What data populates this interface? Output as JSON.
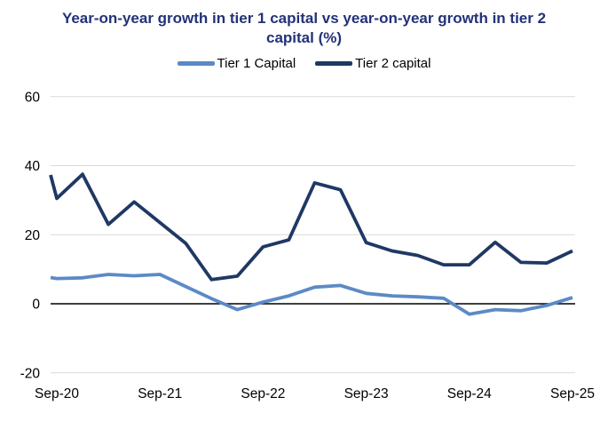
{
  "title": "Year-on-year growth in tier 1 capital vs year-on-year growth in tier 2 capital (%)",
  "colors": {
    "title": "#233278",
    "tier1": "#5B8AC6",
    "tier2": "#1F3864",
    "gridline": "#D9D9D9",
    "zero_line": "#000000",
    "axis_text": "#000000"
  },
  "legend": [
    {
      "label": "Tier 1 Capital",
      "color_key": "tier1"
    },
    {
      "label": "Tier 2 capital",
      "color_key": "tier2"
    }
  ],
  "chart_data": {
    "type": "line",
    "x": [
      "Sep-20",
      "Dec-20",
      "Mar-21",
      "Jun-21",
      "Sep-21",
      "Dec-21",
      "Mar-22",
      "Jun-22",
      "Sep-22",
      "Dec-22",
      "Mar-23",
      "Jun-23",
      "Sep-23",
      "Dec-23",
      "Mar-24",
      "Jun-24",
      "Sep-24",
      "Dec-24",
      "Mar-25",
      "Jun-25",
      "Sep-25"
    ],
    "x_axis_visible_labels": [
      "Sep-20",
      "Sep-21",
      "Sep-22",
      "Sep-23",
      "Sep-24",
      "Sep-25"
    ],
    "series": [
      {
        "name": "Tier 1 Capital",
        "edge_lead_value": 7.6,
        "values": [
          7.3,
          7.5,
          8.5,
          8.1,
          8.5,
          5.0,
          1.5,
          -1.7,
          0.5,
          2.3,
          4.8,
          5.3,
          3.0,
          2.3,
          2.0,
          1.6,
          -3.0,
          -1.7,
          -2.0,
          -0.5,
          1.8
        ]
      },
      {
        "name": "Tier 2 capital",
        "edge_lead_value": 37.3,
        "values": [
          30.5,
          37.5,
          23.0,
          29.5,
          23.5,
          17.5,
          7.0,
          8.0,
          16.5,
          18.5,
          35.0,
          33.0,
          17.7,
          15.3,
          14.0,
          11.3,
          11.3,
          17.8,
          12.0,
          11.8,
          15.3
        ]
      }
    ],
    "title": "Year-on-year growth in tier 1 capital vs year-on-year growth in tier 2 capital (%)",
    "xlabel": "",
    "ylabel": "",
    "ylim": [
      -20,
      60
    ],
    "yticks": [
      60,
      40,
      20,
      0,
      -20
    ],
    "grid": true,
    "legend_position": "top"
  }
}
